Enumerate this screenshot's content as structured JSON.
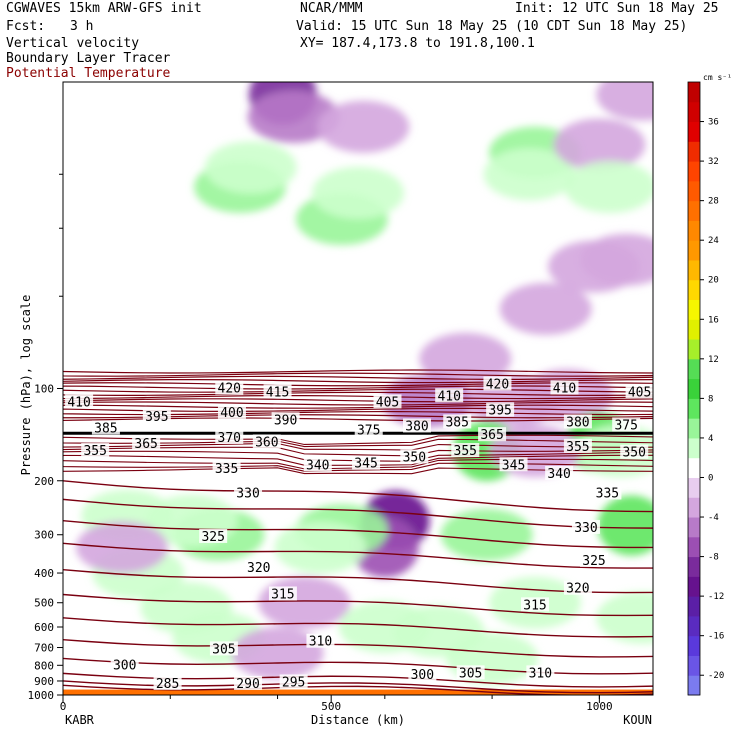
{
  "header": {
    "model": "CGWAVES 15km ARW-GFS init",
    "org": "NCAR/MMM",
    "init": "Init: 12 UTC Sun 18 May 25",
    "fcst_label": "Fcst:",
    "fcst_value": "3 h",
    "valid": "Valid: 15 UTC Sun 18 May 25 (10 CDT Sun 18 May 25)",
    "field1": "Vertical velocity",
    "field2": "Boundary Layer Tracer",
    "field3": "Potential Temperature",
    "xy": "XY= 187.4,173.8 to 191.8,100.1"
  },
  "colors": {
    "theta": "#7a0010",
    "title_red": "#8b0000"
  },
  "chart_data": {
    "type": "heatmap",
    "title": "Vertical velocity / Boundary Layer Tracer / Potential Temperature",
    "xlabel": "Distance (km)",
    "ylabel": "Pressure (hPa), log scale",
    "xlim": [
      0,
      1100
    ],
    "ylim": [
      1000,
      10
    ],
    "y_scale": "log",
    "x_ticks": [
      0,
      500,
      1000
    ],
    "y_ticks": [
      100,
      200,
      300,
      400,
      500,
      600,
      700,
      800,
      900,
      1000
    ],
    "endpoints": {
      "left": "KABR",
      "right": "KOUN"
    },
    "colorbar": {
      "units": "cm s⁻¹",
      "labels": [
        "36",
        "32",
        "28",
        "24",
        "20",
        "16",
        "12",
        "8",
        "4",
        "0",
        "-4",
        "-8",
        "-12",
        "-16",
        "-20"
      ],
      "levels": [
        -22,
        -20,
        -18,
        -16,
        -14,
        -12,
        -10,
        -8,
        -6,
        -4,
        -2,
        2,
        4,
        6,
        8,
        10,
        12,
        14,
        16,
        18,
        20,
        22,
        24,
        26,
        28,
        30,
        32,
        34,
        36,
        38,
        40
      ],
      "colors": [
        "#7b7bef",
        "#6a55e6",
        "#5a39dc",
        "#5a2bc0",
        "#5b1fa6",
        "#66128e",
        "#7a2b9c",
        "#9c4fb3",
        "#b77ac8",
        "#d4a6de",
        "#e8cdef",
        "#ffffff",
        "#ccffcc",
        "#99f599",
        "#5ee65e",
        "#3ad23a",
        "#55dd55",
        "#a6ef2a",
        "#e0f000",
        "#f6f600",
        "#ffd800",
        "#ffb800",
        "#ff9800",
        "#ff8800",
        "#ff7000",
        "#ff5a00",
        "#ff4400",
        "#f02c00",
        "#e00000",
        "#d00000",
        "#c00000"
      ]
    },
    "w_cells": [
      {
        "x": 410,
        "p": 11,
        "w": -10
      },
      {
        "x": 430,
        "p": 13,
        "w": -6
      },
      {
        "x": 560,
        "p": 14,
        "w": -4
      },
      {
        "x": 1080,
        "p": 11,
        "w": -4
      },
      {
        "x": 330,
        "p": 22,
        "w": 6
      },
      {
        "x": 350,
        "p": 19,
        "w": 4
      },
      {
        "x": 520,
        "p": 28,
        "w": 6
      },
      {
        "x": 550,
        "p": 23,
        "w": 4
      },
      {
        "x": 880,
        "p": 17,
        "w": 6
      },
      {
        "x": 870,
        "p": 20,
        "w": 4
      },
      {
        "x": 1000,
        "p": 16,
        "w": -4
      },
      {
        "x": 1020,
        "p": 22,
        "w": 4
      },
      {
        "x": 990,
        "p": 40,
        "w": -4
      },
      {
        "x": 1050,
        "p": 38,
        "w": -4
      },
      {
        "x": 900,
        "p": 55,
        "w": -4
      },
      {
        "x": 750,
        "p": 80,
        "w": -4
      },
      {
        "x": 680,
        "p": 110,
        "w": -6
      },
      {
        "x": 840,
        "p": 110,
        "w": -4
      },
      {
        "x": 940,
        "p": 105,
        "w": -4
      },
      {
        "x": 790,
        "p": 160,
        "w": 8
      },
      {
        "x": 1000,
        "p": 150,
        "w": 8
      },
      {
        "x": 1040,
        "p": 160,
        "w": 4
      },
      {
        "x": 880,
        "p": 160,
        "w": -4
      },
      {
        "x": 620,
        "p": 270,
        "w": -12
      },
      {
        "x": 600,
        "p": 330,
        "w": -8
      },
      {
        "x": 120,
        "p": 260,
        "w": 4
      },
      {
        "x": 290,
        "p": 300,
        "w": 6
      },
      {
        "x": 240,
        "p": 270,
        "w": 4
      },
      {
        "x": 520,
        "p": 290,
        "w": 6
      },
      {
        "x": 480,
        "p": 330,
        "w": 4
      },
      {
        "x": 790,
        "p": 300,
        "w": 6
      },
      {
        "x": 1060,
        "p": 280,
        "w": 8
      },
      {
        "x": 140,
        "p": 400,
        "w": 4
      },
      {
        "x": 110,
        "p": 330,
        "w": -4
      },
      {
        "x": 230,
        "p": 520,
        "w": 4
      },
      {
        "x": 450,
        "p": 500,
        "w": -4
      },
      {
        "x": 600,
        "p": 600,
        "w": 4
      },
      {
        "x": 700,
        "p": 620,
        "w": 4
      },
      {
        "x": 290,
        "p": 650,
        "w": 4
      },
      {
        "x": 880,
        "p": 500,
        "w": 4
      },
      {
        "x": 1080,
        "p": 560,
        "w": 4
      },
      {
        "x": 400,
        "p": 730,
        "w": -4
      },
      {
        "x": 800,
        "p": 760,
        "w": 4
      }
    ],
    "theta_labels": [
      {
        "v": "420",
        "x": 310,
        "p": 100
      },
      {
        "v": "415",
        "x": 400,
        "p": 103
      },
      {
        "v": "410",
        "x": 30,
        "p": 111
      },
      {
        "v": "410",
        "x": 720,
        "p": 106
      },
      {
        "v": "420",
        "x": 810,
        "p": 97
      },
      {
        "v": "410",
        "x": 935,
        "p": 100
      },
      {
        "v": "405",
        "x": 1075,
        "p": 103
      },
      {
        "v": "395",
        "x": 175,
        "p": 124
      },
      {
        "v": "400",
        "x": 315,
        "p": 120
      },
      {
        "v": "390",
        "x": 415,
        "p": 127
      },
      {
        "v": "405",
        "x": 605,
        "p": 111
      },
      {
        "v": "395",
        "x": 815,
        "p": 118
      },
      {
        "v": "385",
        "x": 80,
        "p": 135
      },
      {
        "v": "375",
        "x": 570,
        "p": 137
      },
      {
        "v": "380",
        "x": 660,
        "p": 133
      },
      {
        "v": "385",
        "x": 735,
        "p": 129
      },
      {
        "v": "380",
        "x": 960,
        "p": 129
      },
      {
        "v": "375",
        "x": 1050,
        "p": 132
      },
      {
        "v": "370",
        "x": 310,
        "p": 145
      },
      {
        "v": "360",
        "x": 380,
        "p": 150
      },
      {
        "v": "365",
        "x": 800,
        "p": 142
      },
      {
        "v": "355",
        "x": 60,
        "p": 160
      },
      {
        "v": "365",
        "x": 155,
        "p": 152
      },
      {
        "v": "340",
        "x": 475,
        "p": 178
      },
      {
        "v": "345",
        "x": 565,
        "p": 176
      },
      {
        "v": "350",
        "x": 655,
        "p": 168
      },
      {
        "v": "355",
        "x": 750,
        "p": 160
      },
      {
        "v": "345",
        "x": 840,
        "p": 178
      },
      {
        "v": "355",
        "x": 960,
        "p": 155
      },
      {
        "v": "350",
        "x": 1065,
        "p": 162
      },
      {
        "v": "335",
        "x": 305,
        "p": 183
      },
      {
        "v": "340",
        "x": 925,
        "p": 190
      },
      {
        "v": "330",
        "x": 345,
        "p": 220
      },
      {
        "v": "335",
        "x": 1015,
        "p": 220
      },
      {
        "v": "325",
        "x": 280,
        "p": 305
      },
      {
        "v": "330",
        "x": 975,
        "p": 285
      },
      {
        "v": "320",
        "x": 365,
        "p": 385
      },
      {
        "v": "325",
        "x": 990,
        "p": 365
      },
      {
        "v": "315",
        "x": 410,
        "p": 470
      },
      {
        "v": "320",
        "x": 960,
        "p": 450
      },
      {
        "v": "315",
        "x": 880,
        "p": 510
      },
      {
        "v": "310",
        "x": 480,
        "p": 670
      },
      {
        "v": "305",
        "x": 300,
        "p": 710
      },
      {
        "v": "300",
        "x": 115,
        "p": 800
      },
      {
        "v": "305",
        "x": 760,
        "p": 850
      },
      {
        "v": "300",
        "x": 670,
        "p": 860
      },
      {
        "v": "310",
        "x": 890,
        "p": 850
      },
      {
        "v": "285",
        "x": 195,
        "p": 920
      },
      {
        "v": "290",
        "x": 345,
        "p": 920
      },
      {
        "v": "295",
        "x": 430,
        "p": 910
      }
    ]
  }
}
